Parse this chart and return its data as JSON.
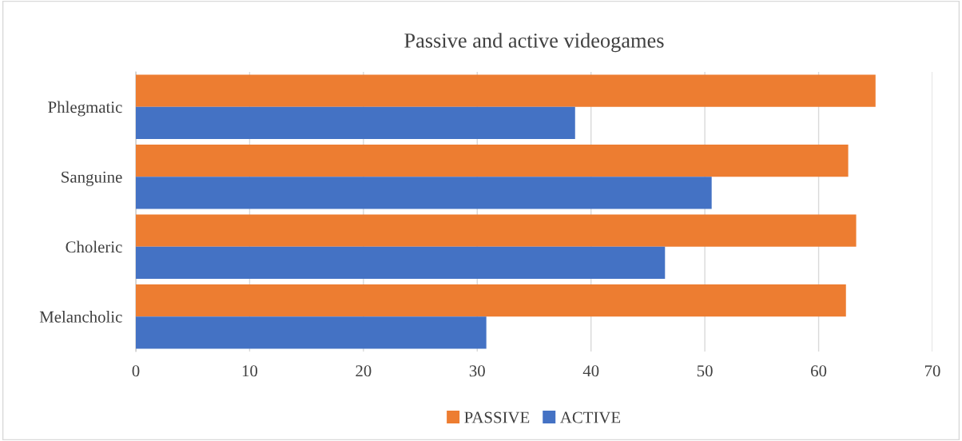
{
  "chart_data": {
    "type": "bar",
    "orientation": "horizontal",
    "title": "Passive and active videogames",
    "categories": [
      "Phlegmatic",
      "Sanguine",
      "Choleric",
      "Melancholic"
    ],
    "series": [
      {
        "name": "PASSIVE",
        "color": "#ed7d31",
        "values": [
          65.0,
          62.6,
          63.3,
          62.4
        ]
      },
      {
        "name": "ACTIVE",
        "color": "#4472c4",
        "values": [
          38.6,
          50.6,
          46.5,
          30.8
        ]
      }
    ],
    "xlim": [
      0,
      70
    ],
    "xticks": [
      0,
      10,
      20,
      30,
      40,
      50,
      60,
      70
    ],
    "grid": "x",
    "legend": "bottom"
  }
}
